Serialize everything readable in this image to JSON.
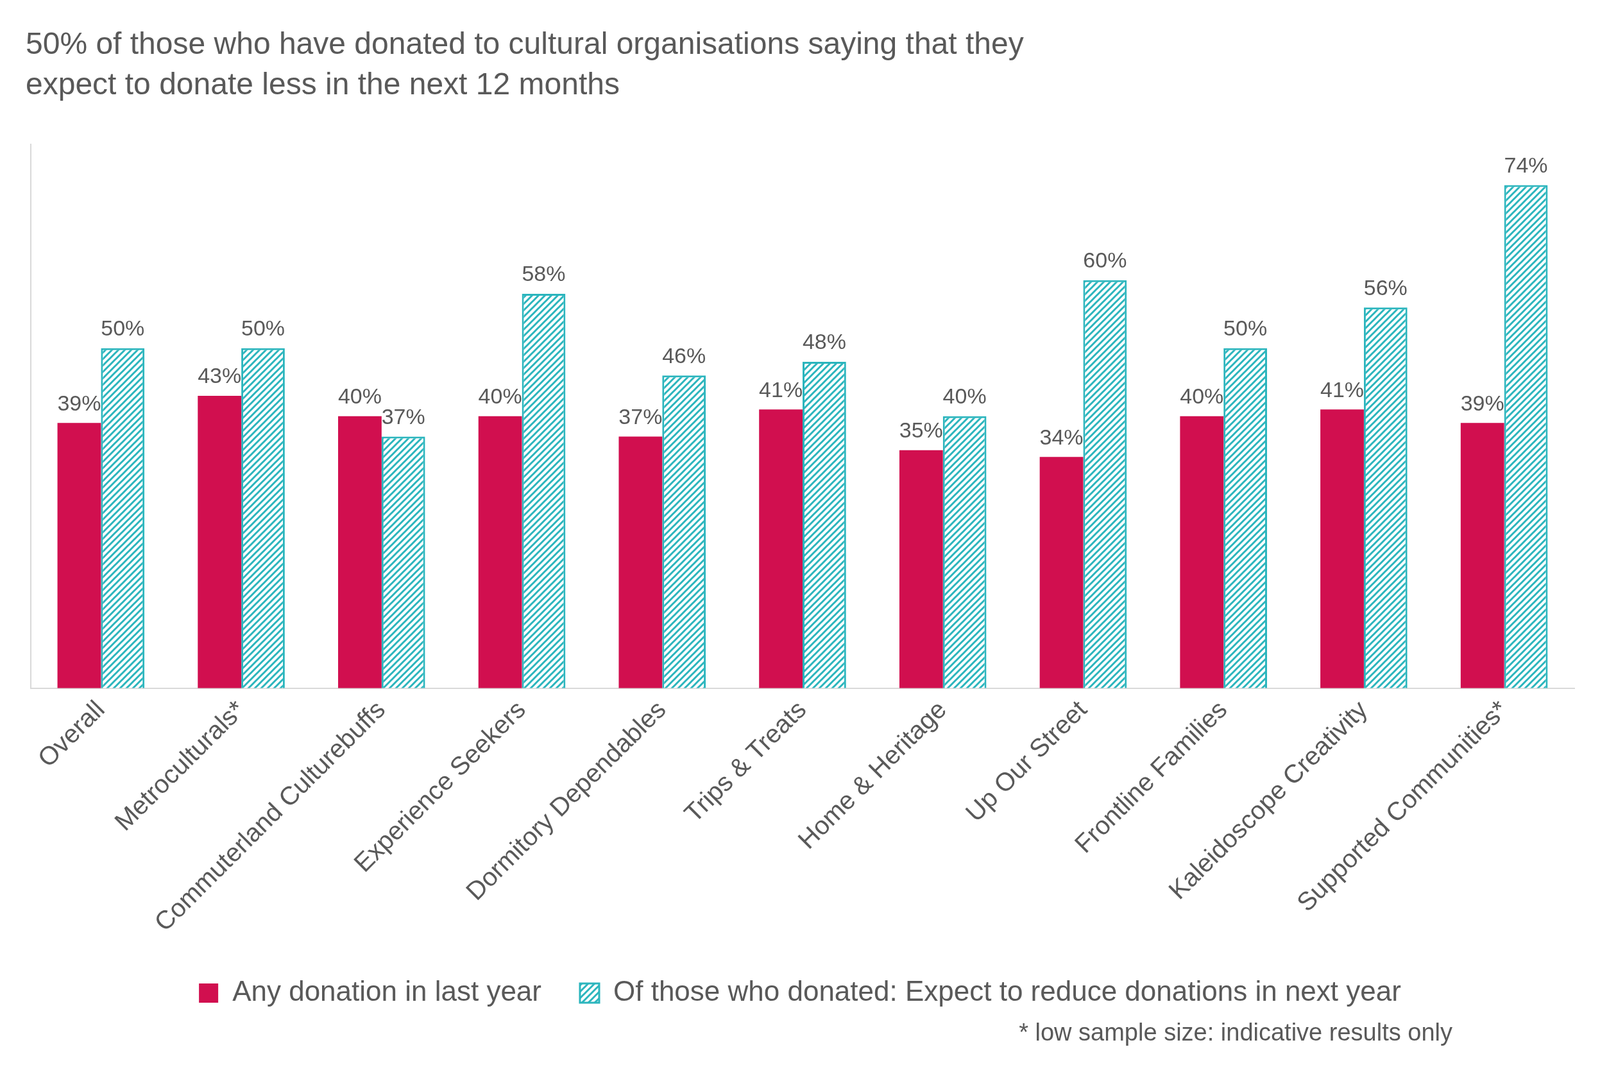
{
  "chart_data": {
    "type": "bar",
    "title": [
      "50% of those who have donated to cultural organisations saying that they",
      "expect to donate less in the next 12 months"
    ],
    "categories": [
      "Overall",
      "Metroculturals*",
      "Commuterland Culturebuffs",
      "Experience Seekers",
      "Dormitory Dependables",
      "Trips & Treats",
      "Home & Heritage",
      "Up Our Street",
      "Frontline Families",
      "Kaleidoscope Creativity",
      "Supported Communities*"
    ],
    "series": [
      {
        "name": "Any donation in last year",
        "color": "#d10f4f",
        "values": [
          39,
          43,
          40,
          40,
          37,
          41,
          35,
          34,
          40,
          41,
          39
        ],
        "value_labels": [
          "39%",
          "43%",
          "40%",
          "40%",
          "37%",
          "41%",
          "35%",
          "34%",
          "40%",
          "41%",
          "39%"
        ]
      },
      {
        "name": "Of those who donated: Expect to reduce donations in next year",
        "color": "#2bb5bd",
        "marker": "hatched",
        "values": [
          50,
          50,
          37,
          58,
          46,
          48,
          40,
          60,
          50,
          56,
          74
        ],
        "value_labels": [
          "50%",
          "50%",
          "37%",
          "58%",
          "46%",
          "48%",
          "40%",
          "60%",
          "50%",
          "56%",
          "74%"
        ]
      }
    ],
    "ylim": [
      0,
      80
    ],
    "grid": false,
    "legend": "bottom",
    "data_labels": true,
    "tick_labels": "x",
    "annotations": [
      "* low sample size: indicative results only"
    ]
  }
}
